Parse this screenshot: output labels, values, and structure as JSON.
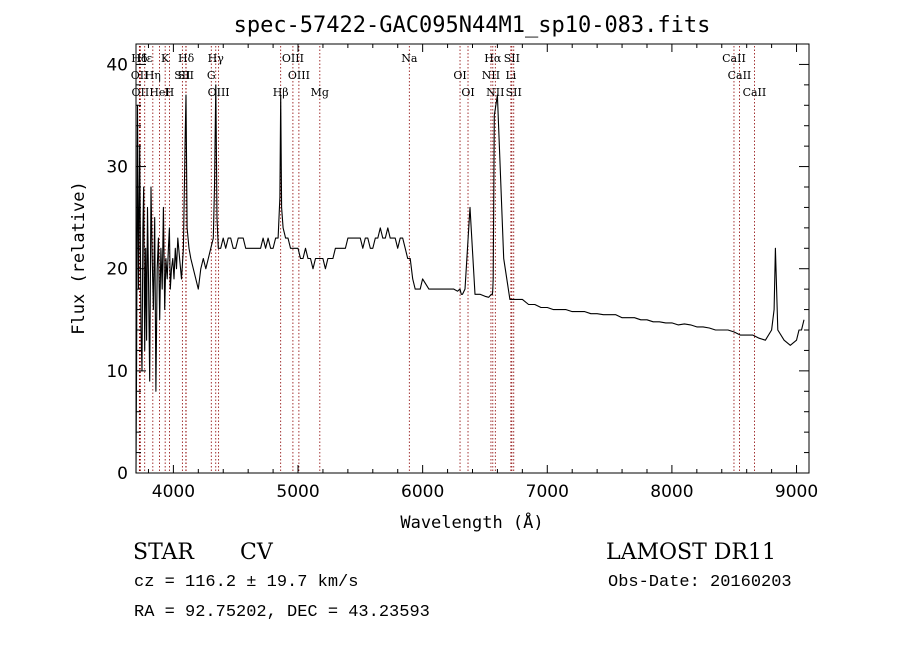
{
  "chart_data": {
    "type": "line",
    "title": "spec-57422-GAC095N44M1_sp10-083.fits",
    "xlabel": "Wavelength (Å)",
    "ylabel": "Flux (relative)",
    "xlim": [
      3700,
      9100
    ],
    "ylim": [
      0,
      42
    ],
    "xticks": [
      4000,
      5000,
      6000,
      7000,
      8000,
      9000
    ],
    "yticks": [
      0,
      10,
      20,
      30,
      40
    ],
    "grid": false,
    "series": [
      {
        "color": "#000000",
        "x": [
          3700,
          3705,
          3712,
          3720,
          3730,
          3740,
          3748,
          3755,
          3762,
          3770,
          3778,
          3785,
          3792,
          3800,
          3810,
          3820,
          3830,
          3840,
          3850,
          3860,
          3870,
          3880,
          3890,
          3900,
          3910,
          3920,
          3930,
          3940,
          3950,
          3960,
          3968,
          3975,
          3985,
          3995,
          4005,
          4015,
          4025,
          4035,
          4050,
          4065,
          4080,
          4095,
          4101,
          4110,
          4125,
          4140,
          4160,
          4180,
          4200,
          4220,
          4240,
          4260,
          4280,
          4300,
          4320,
          4330,
          4340,
          4350,
          4360,
          4380,
          4400,
          4420,
          4440,
          4460,
          4480,
          4500,
          4520,
          4540,
          4560,
          4580,
          4600,
          4620,
          4640,
          4660,
          4680,
          4700,
          4720,
          4740,
          4760,
          4780,
          4800,
          4820,
          4840,
          4855,
          4861,
          4868,
          4880,
          4900,
          4920,
          4940,
          4960,
          4980,
          5000,
          5020,
          5040,
          5060,
          5080,
          5100,
          5120,
          5140,
          5160,
          5180,
          5200,
          5220,
          5240,
          5260,
          5280,
          5300,
          5320,
          5340,
          5360,
          5380,
          5400,
          5420,
          5440,
          5460,
          5480,
          5500,
          5520,
          5540,
          5560,
          5580,
          5600,
          5620,
          5640,
          5660,
          5680,
          5700,
          5720,
          5740,
          5760,
          5780,
          5800,
          5820,
          5840,
          5860,
          5880,
          5900,
          5920,
          5940,
          5960,
          5980,
          6000,
          6050,
          6100,
          6150,
          6200,
          6250,
          6280,
          6300,
          6310,
          6320,
          6340,
          6380,
          6420,
          6460,
          6500,
          6530,
          6550,
          6560,
          6563,
          6566,
          6575,
          6600,
          6650,
          6700,
          6750,
          6800,
          6850,
          6900,
          6950,
          7000,
          7050,
          7100,
          7150,
          7200,
          7250,
          7300,
          7350,
          7400,
          7450,
          7500,
          7550,
          7600,
          7650,
          7700,
          7750,
          7800,
          7850,
          7900,
          7950,
          8000,
          8050,
          8100,
          8150,
          8200,
          8250,
          8300,
          8350,
          8400,
          8450,
          8500,
          8550,
          8600,
          8650,
          8700,
          8750,
          8800,
          8820,
          8830,
          8850,
          8900,
          8950,
          9000,
          9020,
          9040,
          9060
        ],
        "y": [
          0,
          11,
          36,
          18,
          32,
          14,
          10,
          24,
          28,
          12,
          22,
          13,
          26,
          19,
          9,
          28,
          21,
          16,
          25,
          8,
          20,
          23,
          15,
          22,
          18,
          26,
          16,
          21,
          19,
          22,
          24,
          18,
          20,
          21,
          19,
          22,
          20,
          23,
          21,
          19,
          22,
          33,
          37,
          24,
          22,
          21,
          20,
          19,
          18,
          20,
          21,
          20,
          21,
          22,
          23,
          28,
          38,
          25,
          22,
          22,
          23,
          22,
          23,
          23,
          22,
          22,
          23,
          23,
          23,
          22,
          22,
          22,
          22,
          22,
          22,
          22,
          23,
          22,
          23,
          22,
          22,
          23,
          23,
          27,
          37,
          26,
          24,
          23,
          23,
          22,
          22,
          22,
          22,
          21,
          21,
          22,
          21,
          21,
          20,
          21,
          21,
          21,
          21,
          20,
          21,
          21,
          21,
          22,
          22,
          22,
          22,
          22,
          23,
          23,
          23,
          23,
          23,
          23,
          22,
          23,
          23,
          22,
          22,
          23,
          23,
          24,
          23,
          23,
          24,
          23,
          23,
          23,
          22,
          23,
          23,
          22,
          21,
          21,
          19,
          18,
          18,
          18,
          19,
          18,
          18,
          18,
          18,
          18,
          17.8,
          18,
          17.5,
          17.5,
          18,
          26,
          17.5,
          17.5,
          17.3,
          17.2,
          17.5,
          17.5,
          18,
          19,
          35,
          37,
          21,
          17,
          17,
          17,
          16.5,
          16.5,
          16.2,
          16.2,
          16,
          16,
          16,
          15.8,
          15.8,
          15.8,
          15.6,
          15.6,
          15.5,
          15.5,
          15.5,
          15.2,
          15.2,
          15.2,
          15,
          15,
          14.8,
          14.8,
          14.7,
          14.7,
          14.5,
          14.6,
          14.5,
          14.3,
          14.3,
          14.2,
          14,
          14,
          14,
          13.8,
          13.5,
          13.5,
          13.5,
          13.2,
          13,
          14,
          16,
          22,
          14,
          13,
          12.5,
          13,
          14,
          14,
          15
        ]
      }
    ],
    "lines": [
      {
        "label": "Hδ",
        "x": 3727
      },
      {
        "label": "OII",
        "x": 3729
      },
      {
        "label": "OII",
        "x": 3735
      },
      {
        "label": "Hε",
        "x": 3770
      },
      {
        "label": "Hη",
        "x": 3835
      },
      {
        "label": "HeI",
        "x": 3889
      },
      {
        "label": "K",
        "x": 3934
      },
      {
        "label": "SII",
        "x": 4072
      },
      {
        "label": "H",
        "x": 3968
      },
      {
        "label": "Hδ",
        "x": 4102
      },
      {
        "label": "SII",
        "x": 4100
      },
      {
        "label": "OIII",
        "x": 4363
      },
      {
        "label": "Hγ",
        "x": 4340
      },
      {
        "label": "G",
        "x": 4304
      },
      {
        "label": "Hβ",
        "x": 4861
      },
      {
        "label": "OIII",
        "x": 4959
      },
      {
        "label": "OIII",
        "x": 5007
      },
      {
        "label": "Mg",
        "x": 5175
      },
      {
        "label": "Na",
        "x": 5893
      },
      {
        "label": "OI",
        "x": 6300
      },
      {
        "label": "OI",
        "x": 6364
      },
      {
        "label": "Hα",
        "x": 6563
      },
      {
        "label": "NII",
        "x": 6548
      },
      {
        "label": "NII",
        "x": 6583
      },
      {
        "label": "SII",
        "x": 6716
      },
      {
        "label": "Li",
        "x": 6708
      },
      {
        "label": "SII",
        "x": 6731
      },
      {
        "label": "CaII",
        "x": 8498
      },
      {
        "label": "CaII",
        "x": 8542
      },
      {
        "label": "CaII",
        "x": 8662
      }
    ]
  },
  "info": {
    "object_class": "STAR",
    "subclass": "CV",
    "survey": "LAMOST DR11",
    "cz": "cz = 116.2 ± 19.7 km/s",
    "obs_date": "Obs-Date: 20160203",
    "radec": "RA =  92.75202, DEC =  43.23593"
  },
  "colors": {
    "spectrum": "#000000",
    "line_markers": "#8b0000",
    "background": "#ffffff"
  }
}
